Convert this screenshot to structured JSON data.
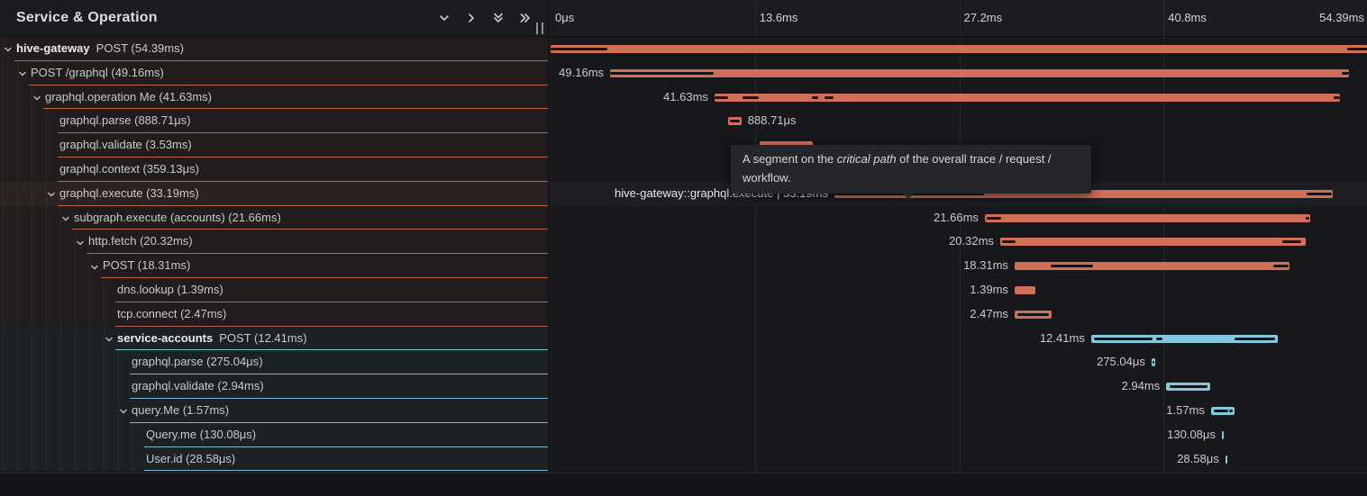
{
  "header": {
    "title": "Service & Operation",
    "icons": [
      "chevron-down-icon",
      "chevron-right-icon",
      "double-chevron-down-icon",
      "double-chevron-right-icon"
    ],
    "resize_grip": "resize-grip"
  },
  "colors": {
    "span_orange": "#d06e58",
    "span_blue": "#85c7db",
    "underline_orange": "#c0614a",
    "underline_blue": "#79b7ca",
    "critical_path": "#15161a",
    "panel_bg": "#17181c",
    "header_bg": "#1b1c20"
  },
  "ruler": {
    "total_ms": 54.39,
    "ticks": [
      {
        "label": "0μs",
        "pct": 0,
        "align": "left"
      },
      {
        "label": "13.6ms",
        "pct": 25,
        "align": "left"
      },
      {
        "label": "27.2ms",
        "pct": 50,
        "align": "left"
      },
      {
        "label": "40.8ms",
        "pct": 75,
        "align": "left"
      },
      {
        "label": "54.39ms",
        "pct": 100,
        "align": "right"
      }
    ],
    "gridline_pcts": [
      25,
      50,
      75
    ]
  },
  "tooltip": {
    "prefix": "A segment on the ",
    "em": "critical path",
    "suffix": " of the overall trace / request / workflow."
  },
  "spans": [
    {
      "id": "hive-gateway-post",
      "level": 0,
      "chevron": true,
      "strong": "hive-gateway",
      "text": "POST (54.39ms)",
      "section": "orange",
      "highlighted": false,
      "start_ms": 0,
      "dur_ms": 54.39,
      "color": "orange",
      "label": "",
      "label_side": "none",
      "critical": [
        [
          0,
          0.07
        ],
        [
          0.975,
          1
        ]
      ]
    },
    {
      "id": "post-graphql",
      "level": 1,
      "chevron": true,
      "strong": "",
      "text": "POST /graphql (49.16ms)",
      "section": "orange",
      "highlighted": false,
      "start_ms": 3.96,
      "dur_ms": 49.16,
      "color": "orange",
      "label": "49.16ms",
      "label_side": "left",
      "critical": [
        [
          0,
          0.14
        ],
        [
          0.99,
          1
        ]
      ]
    },
    {
      "id": "graphql-operation-me",
      "level": 2,
      "chevron": true,
      "strong": "",
      "text": "graphql.operation Me (41.63ms)",
      "section": "orange",
      "highlighted": false,
      "start_ms": 10.91,
      "dur_ms": 41.63,
      "color": "orange",
      "label": "41.63ms",
      "label_side": "left",
      "critical": [
        [
          0,
          0.022
        ],
        [
          0.045,
          0.07
        ],
        [
          0.155,
          0.166
        ],
        [
          0.176,
          0.19
        ],
        [
          0.99,
          1
        ]
      ]
    },
    {
      "id": "graphql-parse-1",
      "level": 3,
      "chevron": false,
      "strong": "",
      "text": "graphql.parse (888.71μs)",
      "section": "orange",
      "highlighted": false,
      "start_ms": 11.81,
      "dur_ms": 0.88871,
      "color": "orange",
      "label": "888.71μs",
      "label_side": "right",
      "critical": [
        [
          0.12,
          0.88
        ]
      ]
    },
    {
      "id": "graphql-validate-1",
      "level": 3,
      "chevron": false,
      "strong": "",
      "text": "graphql.validate (3.53ms)",
      "section": "orange",
      "highlighted": false,
      "start_ms": 13.91,
      "dur_ms": 3.53,
      "color": "orange",
      "label": "",
      "label_side": "none",
      "critical": []
    },
    {
      "id": "graphql-context",
      "level": 3,
      "chevron": false,
      "strong": "",
      "text": "graphql.context (359.13μs)",
      "section": "orange",
      "highlighted": false,
      "start_ms": 17.5,
      "dur_ms": 0.35913,
      "color": "orange",
      "label": "",
      "label_side": "none",
      "critical": []
    },
    {
      "id": "graphql-execute",
      "level": 3,
      "chevron": true,
      "strong": "",
      "text": "graphql.execute (33.19ms)",
      "section": "orange",
      "highlighted": true,
      "start_ms": 18.88,
      "dur_ms": 33.19,
      "color": "orange",
      "label": "hive-gateway::graphql.execute | 33.19ms",
      "label_side": "hover",
      "critical": [
        [
          0,
          0.3
        ],
        [
          0.947,
          0.998
        ]
      ]
    },
    {
      "id": "subgraph-execute",
      "level": 4,
      "chevron": true,
      "strong": "",
      "text": "subgraph.execute (accounts) (21.66ms)",
      "section": "orange",
      "highlighted": false,
      "start_ms": 28.9,
      "dur_ms": 21.66,
      "color": "orange",
      "label": "21.66ms",
      "label_side": "left",
      "critical": [
        [
          0.005,
          0.05
        ],
        [
          0.985,
          0.998
        ]
      ]
    },
    {
      "id": "http-fetch",
      "level": 5,
      "chevron": true,
      "strong": "",
      "text": "http.fetch (20.32ms)",
      "section": "orange",
      "highlighted": false,
      "start_ms": 29.92,
      "dur_ms": 20.32,
      "color": "orange",
      "label": "20.32ms",
      "label_side": "left",
      "critical": [
        [
          0.005,
          0.05
        ],
        [
          0.925,
          0.985
        ]
      ]
    },
    {
      "id": "post-subrequest",
      "level": 6,
      "chevron": true,
      "strong": "",
      "text": "POST (18.31ms)",
      "section": "orange",
      "highlighted": false,
      "start_ms": 30.88,
      "dur_ms": 18.31,
      "color": "orange",
      "label": "18.31ms",
      "label_side": "left",
      "critical": [
        [
          0.13,
          0.285
        ],
        [
          0.94,
          0.995
        ]
      ]
    },
    {
      "id": "dns-lookup",
      "level": 7,
      "chevron": false,
      "strong": "",
      "text": "dns.lookup (1.39ms)",
      "section": "orange",
      "highlighted": false,
      "start_ms": 30.88,
      "dur_ms": 1.39,
      "color": "orange",
      "label": "1.39ms",
      "label_side": "left",
      "critical": []
    },
    {
      "id": "tcp-connect",
      "level": 7,
      "chevron": false,
      "strong": "",
      "text": "tcp.connect (2.47ms)",
      "section": "orange",
      "highlighted": false,
      "start_ms": 30.88,
      "dur_ms": 2.47,
      "color": "orange",
      "label": "2.47ms",
      "label_side": "left",
      "critical": [
        [
          0.08,
          0.92
        ]
      ]
    },
    {
      "id": "service-accounts-post",
      "level": 7,
      "chevron": true,
      "strong": "service-accounts",
      "text": "POST (12.41ms)",
      "section": "blue",
      "highlighted": false,
      "start_ms": 35.97,
      "dur_ms": 12.41,
      "color": "blue",
      "label": "12.41ms",
      "label_side": "left",
      "critical": [
        [
          0.015,
          0.33
        ],
        [
          0.35,
          0.385
        ],
        [
          0.77,
          0.985
        ]
      ]
    },
    {
      "id": "graphql-parse-2",
      "level": 8,
      "chevron": false,
      "strong": "",
      "text": "graphql.parse (275.04μs)",
      "section": "blue",
      "highlighted": false,
      "start_ms": 39.99,
      "dur_ms": 0.27504,
      "color": "blue",
      "label": "275.04μs",
      "label_side": "left",
      "critical": [
        [
          0.3,
          0.7
        ]
      ]
    },
    {
      "id": "graphql-validate-2",
      "level": 8,
      "chevron": false,
      "strong": "",
      "text": "graphql.validate (2.94ms)",
      "section": "blue",
      "highlighted": false,
      "start_ms": 40.97,
      "dur_ms": 2.94,
      "color": "blue",
      "label": "2.94ms",
      "label_side": "left",
      "critical": [
        [
          0.08,
          0.93
        ]
      ]
    },
    {
      "id": "query-me",
      "level": 8,
      "chevron": true,
      "strong": "",
      "text": "query.Me (1.57ms)",
      "section": "blue",
      "highlighted": false,
      "start_ms": 43.95,
      "dur_ms": 1.57,
      "color": "blue",
      "label": "1.57ms",
      "label_side": "left",
      "critical": [
        [
          0.12,
          0.72
        ],
        [
          0.78,
          0.92
        ]
      ]
    },
    {
      "id": "query-me-resolver",
      "level": 9,
      "chevron": false,
      "strong": "",
      "text": "Query.me (130.08μs)",
      "section": "blue",
      "highlighted": false,
      "start_ms": 44.67,
      "dur_ms": 0.13008,
      "color": "blue",
      "label": "130.08μs",
      "label_side": "left",
      "critical": []
    },
    {
      "id": "user-id-resolver",
      "level": 9,
      "chevron": false,
      "strong": "",
      "text": "User.id (28.58μs)",
      "section": "blue",
      "highlighted": false,
      "start_ms": 44.9,
      "dur_ms": 0.02858,
      "color": "blue",
      "label": "28.58μs",
      "label_side": "left",
      "critical": []
    }
  ]
}
